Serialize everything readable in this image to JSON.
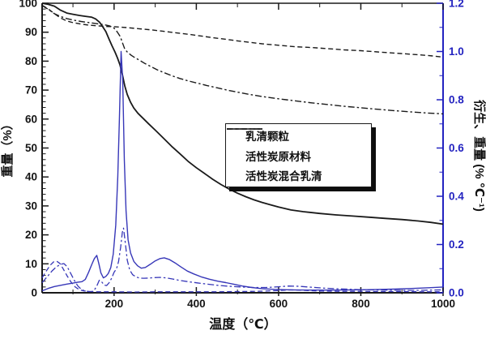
{
  "figure": {
    "background": "#ffffff",
    "description_labels": {
      "xlabel": "温度（℃）",
      "ylabel_left": "重量（%）",
      "ylabel_right": "衍生、重量 (% ℃⁻¹)"
    }
  },
  "chart_data": {
    "type": "line",
    "title": "",
    "xlabel": "温度（℃）",
    "ylabel_left": "重量（%）",
    "ylabel_right": "衍生、重量 (% ℃⁻¹)",
    "x_range": [
      25,
      1000
    ],
    "x_major_ticks": [
      200,
      400,
      600,
      800,
      1000
    ],
    "x_minor_ticks": [
      100,
      300,
      500,
      700,
      900
    ],
    "y_left_range": [
      0,
      100
    ],
    "y_left_major_step": 10,
    "y_left_minor_step": 2,
    "y_right_range": [
      0,
      1.2
    ],
    "y_right_major_step": 0.2,
    "y_right_minor_step": 0.1,
    "grid": false,
    "legend_position": "middle-right",
    "colors": {
      "tg": "#1a1a1a",
      "derivative": "#3737b8",
      "right_axis": "#2323c0"
    },
    "legend": [
      {
        "label": "乳清颗粒",
        "style": "solid"
      },
      {
        "label": "活性炭原材料",
        "style": "dashed"
      },
      {
        "label": "活性炭混合乳清",
        "style": "dashdot"
      }
    ],
    "series": [
      {
        "name": "乳清颗粒",
        "axis": "left",
        "style": "solid",
        "color_key": "tg",
        "width": 1.8,
        "points": [
          [
            25,
            100
          ],
          [
            40,
            99.6
          ],
          [
            55,
            99.0
          ],
          [
            70,
            97.6
          ],
          [
            85,
            96.6
          ],
          [
            100,
            96.2
          ],
          [
            115,
            95.8
          ],
          [
            130,
            95.5
          ],
          [
            145,
            95.2
          ],
          [
            155,
            94.6
          ],
          [
            165,
            93.4
          ],
          [
            172,
            92.0
          ],
          [
            180,
            90.2
          ],
          [
            188,
            87.5
          ],
          [
            195,
            85.3
          ],
          [
            202,
            83.2
          ],
          [
            208,
            81.2
          ],
          [
            214,
            78.8
          ],
          [
            220,
            75.5
          ],
          [
            226,
            71.5
          ],
          [
            232,
            68.5
          ],
          [
            240,
            65.8
          ],
          [
            248,
            63.8
          ],
          [
            258,
            62.0
          ],
          [
            270,
            60.3
          ],
          [
            285,
            58.2
          ],
          [
            300,
            56.2
          ],
          [
            320,
            53.4
          ],
          [
            340,
            50.6
          ],
          [
            360,
            48.0
          ],
          [
            380,
            45.4
          ],
          [
            400,
            43.2
          ],
          [
            420,
            41.2
          ],
          [
            440,
            39.2
          ],
          [
            460,
            37.4
          ],
          [
            480,
            35.8
          ],
          [
            500,
            34.4
          ],
          [
            520,
            33.2
          ],
          [
            540,
            32.1
          ],
          [
            560,
            31.2
          ],
          [
            580,
            30.4
          ],
          [
            600,
            29.6
          ],
          [
            630,
            28.6
          ],
          [
            660,
            28.0
          ],
          [
            700,
            27.4
          ],
          [
            740,
            26.9
          ],
          [
            780,
            26.5
          ],
          [
            820,
            26.1
          ],
          [
            860,
            25.7
          ],
          [
            900,
            25.3
          ],
          [
            940,
            24.8
          ],
          [
            970,
            24.3
          ],
          [
            1000,
            23.7
          ]
        ]
      },
      {
        "name": "活性炭原材料",
        "axis": "left",
        "style": "dashed",
        "color_key": "tg",
        "width": 1.4,
        "points": [
          [
            25,
            99.3
          ],
          [
            40,
            98.0
          ],
          [
            55,
            96.4
          ],
          [
            70,
            94.9
          ],
          [
            85,
            93.9
          ],
          [
            100,
            93.3
          ],
          [
            120,
            92.8
          ],
          [
            140,
            92.4
          ],
          [
            160,
            92.2
          ],
          [
            180,
            92.0
          ],
          [
            200,
            91.9
          ],
          [
            230,
            91.6
          ],
          [
            260,
            91.2
          ],
          [
            290,
            90.8
          ],
          [
            320,
            90.3
          ],
          [
            350,
            89.8
          ],
          [
            380,
            89.3
          ],
          [
            410,
            88.7
          ],
          [
            440,
            88.1
          ],
          [
            470,
            87.6
          ],
          [
            500,
            87.0
          ],
          [
            530,
            86.5
          ],
          [
            560,
            86.0
          ],
          [
            600,
            85.5
          ],
          [
            640,
            85.0
          ],
          [
            680,
            84.7
          ],
          [
            720,
            84.3
          ],
          [
            760,
            83.9
          ],
          [
            800,
            83.6
          ],
          [
            840,
            83.2
          ],
          [
            880,
            82.8
          ],
          [
            920,
            82.4
          ],
          [
            950,
            82.1
          ],
          [
            975,
            81.8
          ],
          [
            1000,
            81.4
          ]
        ]
      },
      {
        "name": "活性炭混合乳清",
        "axis": "left",
        "style": "dashdot",
        "color_key": "tg",
        "width": 1.4,
        "points": [
          [
            25,
            99.2
          ],
          [
            40,
            97.9
          ],
          [
            55,
            96.4
          ],
          [
            70,
            95.4
          ],
          [
            85,
            94.7
          ],
          [
            100,
            94.2
          ],
          [
            120,
            93.7
          ],
          [
            140,
            93.3
          ],
          [
            160,
            92.9
          ],
          [
            175,
            92.6
          ],
          [
            188,
            92.2
          ],
          [
            196,
            91.8
          ],
          [
            203,
            91.0
          ],
          [
            209,
            89.8
          ],
          [
            215,
            88.5
          ],
          [
            220,
            86.5
          ],
          [
            226,
            84.2
          ],
          [
            233,
            83.0
          ],
          [
            242,
            82.0
          ],
          [
            252,
            81.1
          ],
          [
            262,
            80.3
          ],
          [
            275,
            79.2
          ],
          [
            290,
            78.1
          ],
          [
            305,
            77.0
          ],
          [
            320,
            76.1
          ],
          [
            340,
            75.0
          ],
          [
            360,
            74.0
          ],
          [
            380,
            73.2
          ],
          [
            400,
            72.5
          ],
          [
            425,
            71.6
          ],
          [
            450,
            70.8
          ],
          [
            475,
            70.0
          ],
          [
            500,
            69.3
          ],
          [
            530,
            68.5
          ],
          [
            560,
            67.8
          ],
          [
            600,
            67.0
          ],
          [
            640,
            66.3
          ],
          [
            680,
            65.6
          ],
          [
            720,
            65.0
          ],
          [
            760,
            64.4
          ],
          [
            800,
            63.9
          ],
          [
            840,
            63.4
          ],
          [
            880,
            62.9
          ],
          [
            920,
            62.5
          ],
          [
            960,
            62.1
          ],
          [
            1000,
            61.8
          ]
        ]
      },
      {
        "name": "乳清颗粒 (衍生)",
        "axis": "right",
        "style": "solid",
        "color_key": "derivative",
        "width": 1.4,
        "points": [
          [
            25,
            0.008
          ],
          [
            40,
            0.018
          ],
          [
            55,
            0.026
          ],
          [
            70,
            0.031
          ],
          [
            85,
            0.036
          ],
          [
            100,
            0.04
          ],
          [
            112,
            0.044
          ],
          [
            122,
            0.046
          ],
          [
            130,
            0.055
          ],
          [
            138,
            0.085
          ],
          [
            146,
            0.118
          ],
          [
            152,
            0.142
          ],
          [
            158,
            0.155
          ],
          [
            163,
            0.12
          ],
          [
            168,
            0.082
          ],
          [
            174,
            0.062
          ],
          [
            180,
            0.068
          ],
          [
            186,
            0.08
          ],
          [
            192,
            0.105
          ],
          [
            198,
            0.16
          ],
          [
            204,
            0.28
          ],
          [
            209,
            0.48
          ],
          [
            213,
            0.72
          ],
          [
            217,
            1.0
          ],
          [
            221,
            0.88
          ],
          [
            225,
            0.55
          ],
          [
            229,
            0.34
          ],
          [
            234,
            0.22
          ],
          [
            240,
            0.165
          ],
          [
            248,
            0.13
          ],
          [
            257,
            0.112
          ],
          [
            266,
            0.102
          ],
          [
            276,
            0.105
          ],
          [
            288,
            0.118
          ],
          [
            300,
            0.132
          ],
          [
            312,
            0.142
          ],
          [
            322,
            0.145
          ],
          [
            334,
            0.138
          ],
          [
            348,
            0.124
          ],
          [
            362,
            0.108
          ],
          [
            378,
            0.09
          ],
          [
            394,
            0.078
          ],
          [
            412,
            0.066
          ],
          [
            432,
            0.056
          ],
          [
            452,
            0.048
          ],
          [
            472,
            0.042
          ],
          [
            492,
            0.035
          ],
          [
            512,
            0.028
          ],
          [
            535,
            0.022
          ],
          [
            560,
            0.017
          ],
          [
            590,
            0.014
          ],
          [
            630,
            0.012
          ],
          [
            680,
            0.011
          ],
          [
            730,
            0.011
          ],
          [
            780,
            0.012
          ],
          [
            830,
            0.013
          ],
          [
            880,
            0.015
          ],
          [
            930,
            0.018
          ],
          [
            965,
            0.021
          ],
          [
            1000,
            0.024
          ]
        ]
      },
      {
        "name": "活性炭原材料 (衍生)",
        "axis": "right",
        "style": "dashed",
        "color_key": "derivative",
        "width": 1.3,
        "points": [
          [
            25,
            0.062
          ],
          [
            35,
            0.09
          ],
          [
            45,
            0.115
          ],
          [
            53,
            0.128
          ],
          [
            60,
            0.131
          ],
          [
            68,
            0.122
          ],
          [
            76,
            0.1
          ],
          [
            85,
            0.072
          ],
          [
            95,
            0.045
          ],
          [
            105,
            0.025
          ],
          [
            115,
            0.013
          ],
          [
            125,
            0.008
          ],
          [
            140,
            0.005
          ],
          [
            160,
            0.004
          ],
          [
            200,
            0.004
          ],
          [
            250,
            0.003
          ],
          [
            300,
            0.004
          ],
          [
            350,
            0.004
          ],
          [
            400,
            0.004
          ],
          [
            450,
            0.004
          ],
          [
            500,
            0.005
          ],
          [
            550,
            0.006
          ],
          [
            600,
            0.009
          ],
          [
            630,
            0.012
          ],
          [
            660,
            0.01
          ],
          [
            700,
            0.007
          ],
          [
            750,
            0.006
          ],
          [
            800,
            0.006
          ],
          [
            850,
            0.005
          ],
          [
            900,
            0.005
          ],
          [
            950,
            0.004
          ],
          [
            1000,
            0.004
          ]
        ]
      },
      {
        "name": "活性炭混合乳清 (衍生)",
        "axis": "right",
        "style": "dashdot",
        "color_key": "derivative",
        "width": 1.3,
        "points": [
          [
            25,
            0.042
          ],
          [
            38,
            0.068
          ],
          [
            50,
            0.092
          ],
          [
            60,
            0.108
          ],
          [
            70,
            0.118
          ],
          [
            78,
            0.121
          ],
          [
            86,
            0.108
          ],
          [
            94,
            0.082
          ],
          [
            103,
            0.052
          ],
          [
            112,
            0.028
          ],
          [
            121,
            0.013
          ],
          [
            130,
            0.007
          ],
          [
            140,
            0.005
          ],
          [
            150,
            0.006
          ],
          [
            158,
            0.028
          ],
          [
            164,
            0.052
          ],
          [
            170,
            0.045
          ],
          [
            176,
            0.032
          ],
          [
            182,
            0.03
          ],
          [
            188,
            0.042
          ],
          [
            194,
            0.06
          ],
          [
            200,
            0.085
          ],
          [
            206,
            0.1
          ],
          [
            211,
            0.13
          ],
          [
            216,
            0.19
          ],
          [
            220,
            0.25
          ],
          [
            223,
            0.268
          ],
          [
            227,
            0.21
          ],
          [
            232,
            0.135
          ],
          [
            238,
            0.095
          ],
          [
            245,
            0.075
          ],
          [
            253,
            0.066
          ],
          [
            262,
            0.061
          ],
          [
            272,
            0.06
          ],
          [
            284,
            0.061
          ],
          [
            298,
            0.063
          ],
          [
            312,
            0.064
          ],
          [
            326,
            0.062
          ],
          [
            342,
            0.057
          ],
          [
            360,
            0.051
          ],
          [
            380,
            0.046
          ],
          [
            402,
            0.041
          ],
          [
            426,
            0.036
          ],
          [
            452,
            0.031
          ],
          [
            480,
            0.027
          ],
          [
            510,
            0.024
          ],
          [
            540,
            0.022
          ],
          [
            570,
            0.022
          ],
          [
            600,
            0.025
          ],
          [
            625,
            0.028
          ],
          [
            650,
            0.027
          ],
          [
            680,
            0.023
          ],
          [
            710,
            0.019
          ],
          [
            745,
            0.016
          ],
          [
            780,
            0.014
          ],
          [
            820,
            0.012
          ],
          [
            860,
            0.011
          ],
          [
            900,
            0.01
          ],
          [
            945,
            0.01
          ],
          [
            1000,
            0.012
          ]
        ]
      }
    ]
  }
}
